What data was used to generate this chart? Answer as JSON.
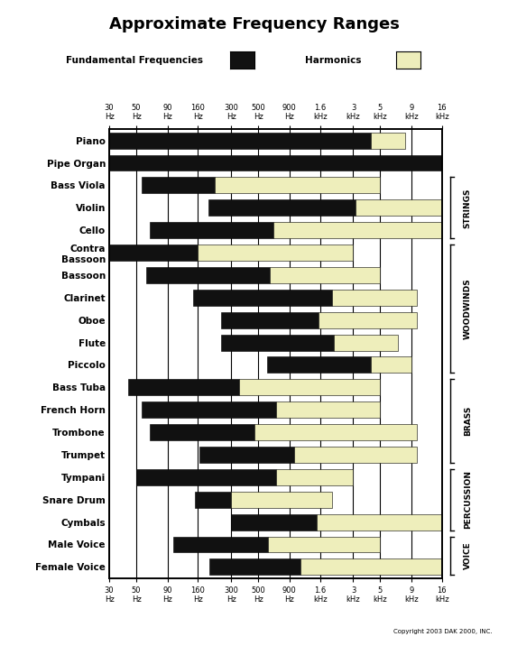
{
  "title": "Approximate Frequency Ranges",
  "legend_fund": "Fundamental Frequencies",
  "legend_harm": "Harmonics",
  "fund_color": "#111111",
  "harm_color": "#eeeebb",
  "freq_ticks": [
    30,
    50,
    90,
    160,
    300,
    500,
    900,
    1600,
    3000,
    5000,
    9000,
    16000
  ],
  "freq_labels": [
    "30\nHz",
    "50\nHz",
    "90\nHz",
    "160\nHz",
    "300\nHz",
    "500\nHz",
    "900\nHz",
    "1.6\nkHz",
    "3\nkHz",
    "5\nkHz",
    "9\nkHz",
    "16\nkHz"
  ],
  "instruments": [
    "Piano",
    "Pipe Organ",
    "Bass Viola",
    "Violin",
    "Cello",
    "Contra\nBassoon",
    "Bassoon",
    "Clarinet",
    "Oboe",
    "Flute",
    "Piccolo",
    "Bass Tuba",
    "French Horn",
    "Trombone",
    "Trumpet",
    "Tympani",
    "Snare Drum",
    "Cymbals",
    "Male Voice",
    "Female Voice"
  ],
  "groups": [
    {
      "label": "STRINGS",
      "members": [
        "Bass Viola",
        "Violin",
        "Cello"
      ]
    },
    {
      "label": "WOODWINDS",
      "members": [
        "Contra\nBassoon",
        "Bassoon",
        "Clarinet",
        "Oboe",
        "Flute",
        "Piccolo"
      ]
    },
    {
      "label": "BRASS",
      "members": [
        "Bass Tuba",
        "French Horn",
        "Trombone",
        "Trumpet"
      ]
    },
    {
      "label": "PERCUSSION",
      "members": [
        "Tympani",
        "Snare Drum",
        "Cymbals"
      ]
    },
    {
      "label": "VOICE",
      "members": [
        "Male Voice",
        "Female Voice"
      ]
    }
  ],
  "bars": {
    "Piano": {
      "fund": [
        30,
        4186
      ],
      "harm": [
        4186,
        8000
      ]
    },
    "Pipe Organ": {
      "fund": [
        30,
        16000
      ],
      "harm": null
    },
    "Bass Viola": {
      "fund": [
        55,
        220
      ],
      "harm": [
        220,
        5000
      ]
    },
    "Violin": {
      "fund": [
        196,
        3136
      ],
      "harm": [
        3136,
        16000
      ]
    },
    "Cello": {
      "fund": [
        65,
        660
      ],
      "harm": [
        660,
        16000
      ]
    },
    "Contra\nBassoon": {
      "fund": [
        30,
        160
      ],
      "harm": [
        160,
        3000
      ]
    },
    "Bassoon": {
      "fund": [
        60,
        625
      ],
      "harm": [
        625,
        5000
      ]
    },
    "Clarinet": {
      "fund": [
        147,
        2000
      ],
      "harm": [
        2000,
        10000
      ]
    },
    "Oboe": {
      "fund": [
        247,
        1568
      ],
      "harm": [
        1568,
        10000
      ]
    },
    "Flute": {
      "fund": [
        247,
        2093
      ],
      "harm": [
        2093,
        7000
      ]
    },
    "Piccolo": {
      "fund": [
        587,
        4186
      ],
      "harm": [
        4186,
        9000
      ]
    },
    "Bass Tuba": {
      "fund": [
        43,
        350
      ],
      "harm": [
        350,
        5000
      ]
    },
    "French Horn": {
      "fund": [
        55,
        698
      ],
      "harm": [
        698,
        5000
      ]
    },
    "Trombone": {
      "fund": [
        65,
        466
      ],
      "harm": [
        466,
        10000
      ]
    },
    "Trumpet": {
      "fund": [
        165,
        988
      ],
      "harm": [
        988,
        10000
      ]
    },
    "Tympani": {
      "fund": [
        50,
        700
      ],
      "harm": [
        700,
        3000
      ]
    },
    "Snare Drum": {
      "fund": [
        150,
        300
      ],
      "harm": [
        300,
        2000
      ]
    },
    "Cymbals": {
      "fund": [
        300,
        1500
      ],
      "harm": [
        1500,
        16000
      ]
    },
    "Male Voice": {
      "fund": [
        100,
        600
      ],
      "harm": [
        600,
        5000
      ]
    },
    "Female Voice": {
      "fund": [
        200,
        1100
      ],
      "harm": [
        1100,
        16000
      ]
    }
  },
  "copyright": "Copyright 2003 DAK 2000, INC."
}
